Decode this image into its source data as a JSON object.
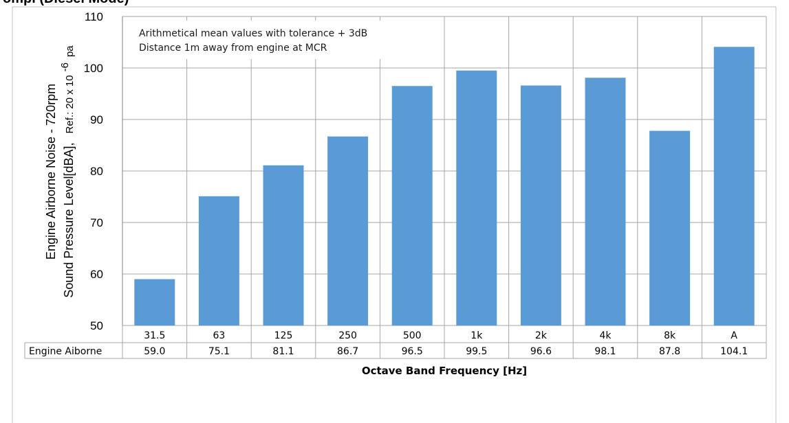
{
  "header": {
    "title_fragment": "ompl (Diesel Mode)"
  },
  "chart_data": {
    "type": "bar",
    "categories": [
      "31.5",
      "63",
      "125",
      "250",
      "500",
      "1k",
      "2k",
      "4k",
      "8k",
      "A"
    ],
    "series": [
      {
        "name": "Engine Aiborne",
        "values": [
          59.0,
          75.1,
          81.1,
          86.7,
          96.5,
          99.5,
          96.6,
          98.1,
          87.8,
          104.1
        ]
      }
    ],
    "value_labels": [
      "59.0",
      "75.1",
      "81.1",
      "86.7",
      "96.5",
      "99.5",
      "96.6",
      "98.1",
      "87.8",
      "104.1"
    ],
    "ylim": [
      50,
      110
    ],
    "yticks": [
      50,
      60,
      70,
      80,
      90,
      100,
      110
    ],
    "xlabel": "Octave Band Frequency [Hz]",
    "ylabel_line1": "Engine Airborne Noise - 720rpm",
    "ylabel_line2_main": "Sound Pressure Level[dBA],",
    "ylabel_line2_ref": "Ref.: 20 x 10",
    "ylabel_line2_exp": "-6",
    "ylabel_line2_unit": "pa",
    "annotations": [
      "Arithmetical mean values with tolerance + 3dB",
      "Distance 1m away from engine at MCR"
    ],
    "grid": true,
    "bar_color": "#5b9bd5",
    "data_table": true
  }
}
